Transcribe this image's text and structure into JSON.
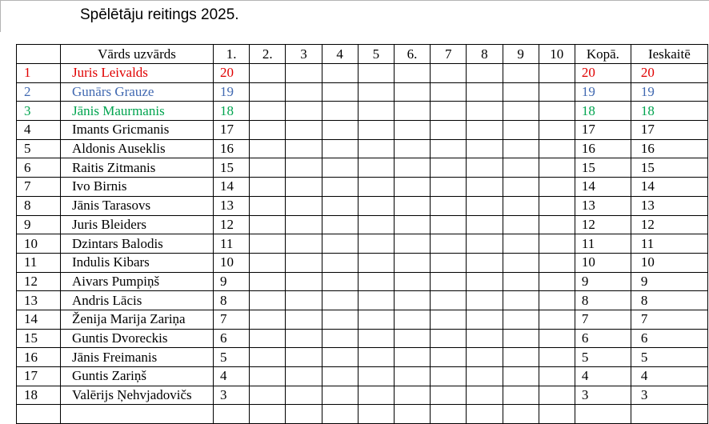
{
  "title": "Spēlētāju reitings 2025.",
  "table": {
    "headers": {
      "rank": "",
      "name": "Vārds uzvārds",
      "rounds": [
        "1.",
        "2.",
        "3",
        "4",
        "5",
        "6.",
        "7",
        "8",
        "9",
        "10"
      ],
      "total": "Kopā.",
      "counted": "Ieskaitē"
    },
    "highlight_colors": {
      "rank_1": "#e00000",
      "rank_2": "#4169b1",
      "rank_3": "#00a44f",
      "default": "#000000"
    },
    "rows": [
      {
        "rank": "1",
        "name": "Juris Leivalds",
        "scores": [
          "20",
          "",
          "",
          "",
          "",
          "",
          "",
          "",
          "",
          ""
        ],
        "total": "20",
        "counted": "20",
        "color": "#e00000"
      },
      {
        "rank": "2",
        "name": "Gunārs Grauze",
        "scores": [
          "19",
          "",
          "",
          "",
          "",
          "",
          "",
          "",
          "",
          ""
        ],
        "total": "19",
        "counted": "19",
        "color": "#4169b1"
      },
      {
        "rank": "3",
        "name": "Jānis Maurmanis",
        "scores": [
          "18",
          "",
          "",
          "",
          "",
          "",
          "",
          "",
          "",
          ""
        ],
        "total": "18",
        "counted": "18",
        "color": "#00a44f"
      },
      {
        "rank": "4",
        "name": "Imants Gricmanis",
        "scores": [
          "17",
          "",
          "",
          "",
          "",
          "",
          "",
          "",
          "",
          ""
        ],
        "total": "17",
        "counted": "17",
        "color": ""
      },
      {
        "rank": "5",
        "name": "Aldonis Auseklis",
        "scores": [
          "16",
          "",
          "",
          "",
          "",
          "",
          "",
          "",
          "",
          ""
        ],
        "total": "16",
        "counted": "16",
        "color": ""
      },
      {
        "rank": "6",
        "name": "Raitis Zitmanis",
        "scores": [
          "15",
          "",
          "",
          "",
          "",
          "",
          "",
          "",
          "",
          ""
        ],
        "total": "15",
        "counted": "15",
        "color": ""
      },
      {
        "rank": "7",
        "name": "Ivo Birnis",
        "scores": [
          "14",
          "",
          "",
          "",
          "",
          "",
          "",
          "",
          "",
          ""
        ],
        "total": "14",
        "counted": "14",
        "color": ""
      },
      {
        "rank": "8",
        "name": "Jānis Tarasovs",
        "scores": [
          "13",
          "",
          "",
          "",
          "",
          "",
          "",
          "",
          "",
          ""
        ],
        "total": "13",
        "counted": "13",
        "color": ""
      },
      {
        "rank": "9",
        "name": "Juris Bleiders",
        "scores": [
          "12",
          "",
          "",
          "",
          "",
          "",
          "",
          "",
          "",
          ""
        ],
        "total": "12",
        "counted": "12",
        "color": ""
      },
      {
        "rank": "10",
        "name": "Dzintars Balodis",
        "scores": [
          "11",
          "",
          "",
          "",
          "",
          "",
          "",
          "",
          "",
          ""
        ],
        "total": "11",
        "counted": "11",
        "color": ""
      },
      {
        "rank": "11",
        "name": "Indulis Kibars",
        "scores": [
          "10",
          "",
          "",
          "",
          "",
          "",
          "",
          "",
          "",
          ""
        ],
        "total": "10",
        "counted": "10",
        "color": ""
      },
      {
        "rank": "12",
        "name": "Aivars Pumpiņš",
        "scores": [
          "9",
          "",
          "",
          "",
          "",
          "",
          "",
          "",
          "",
          ""
        ],
        "total": "9",
        "counted": "9",
        "color": ""
      },
      {
        "rank": "13",
        "name": "Andris Lācis",
        "scores": [
          "8",
          "",
          "",
          "",
          "",
          "",
          "",
          "",
          "",
          ""
        ],
        "total": "8",
        "counted": "8",
        "color": ""
      },
      {
        "rank": "14",
        "name": "Ženija Marija Zariņa",
        "scores": [
          "7",
          "",
          "",
          "",
          "",
          "",
          "",
          "",
          "",
          ""
        ],
        "total": "7",
        "counted": "7",
        "color": ""
      },
      {
        "rank": "15",
        "name": "Guntis Dvoreckis",
        "scores": [
          "6",
          "",
          "",
          "",
          "",
          "",
          "",
          "",
          "",
          ""
        ],
        "total": "6",
        "counted": "6",
        "color": ""
      },
      {
        "rank": "16",
        "name": "Jānis Freimanis",
        "scores": [
          "5",
          "",
          "",
          "",
          "",
          "",
          "",
          "",
          "",
          ""
        ],
        "total": "5",
        "counted": "5",
        "color": ""
      },
      {
        "rank": "17",
        "name": "Guntis Zariņš",
        "scores": [
          "4",
          "",
          "",
          "",
          "",
          "",
          "",
          "",
          "",
          ""
        ],
        "total": "4",
        "counted": "4",
        "color": ""
      },
      {
        "rank": "18",
        "name": "Valērijs Ņehvjadovičs",
        "scores": [
          "3",
          "",
          "",
          "",
          "",
          "",
          "",
          "",
          "",
          ""
        ],
        "total": "3",
        "counted": "3",
        "color": ""
      }
    ],
    "partial_next_row": true
  }
}
